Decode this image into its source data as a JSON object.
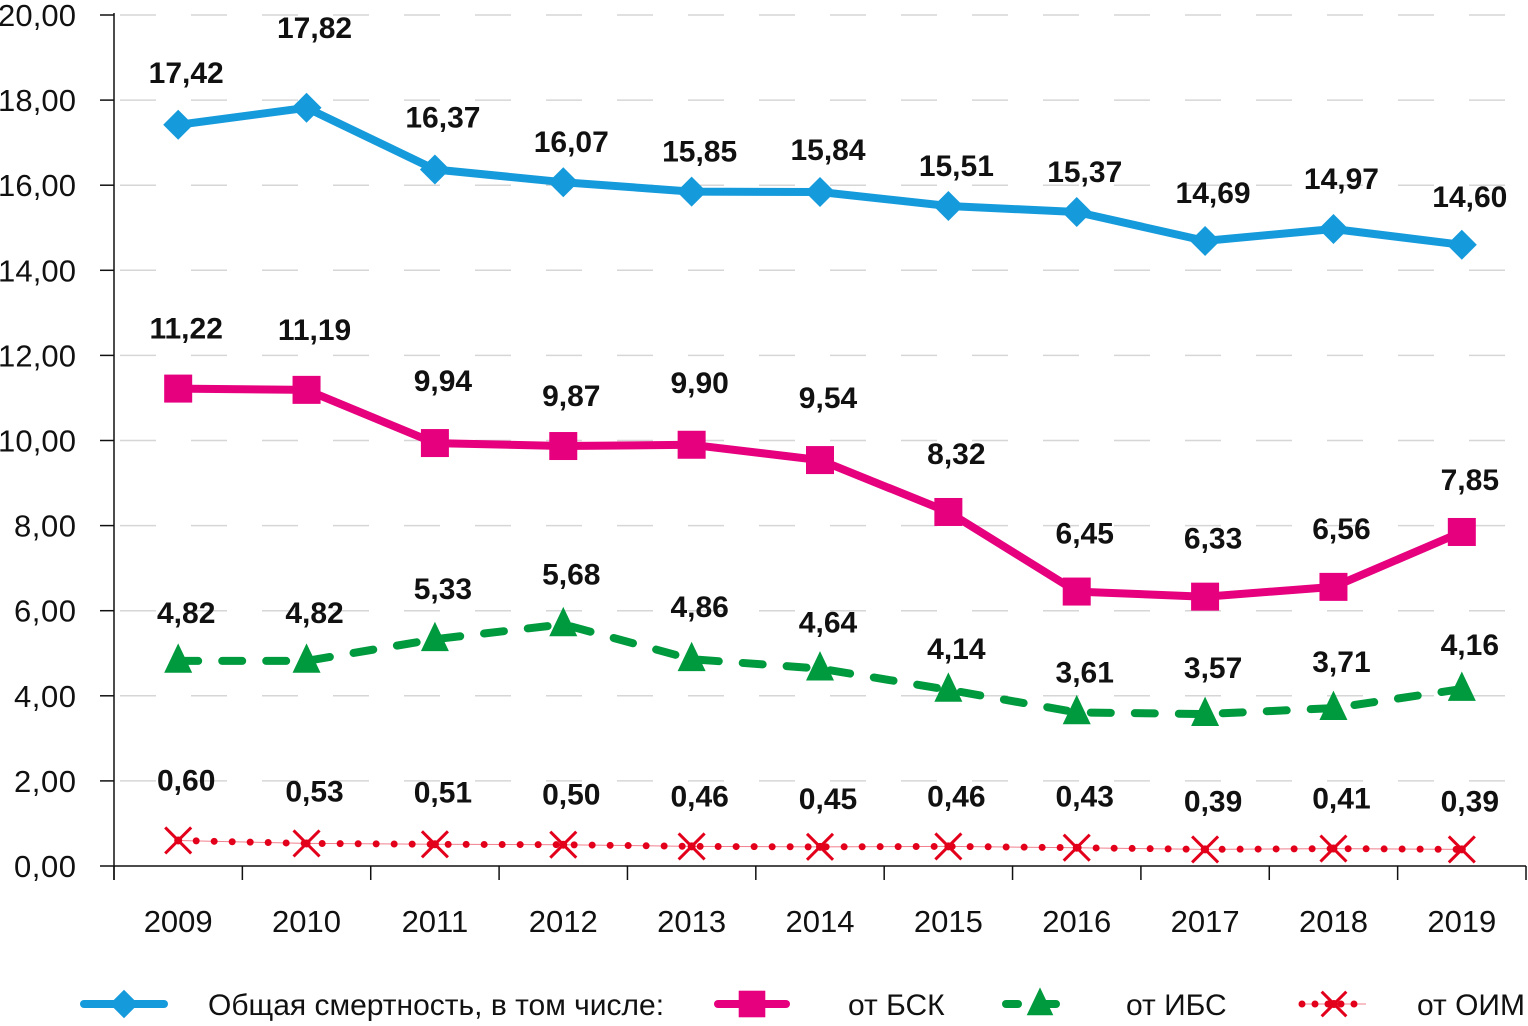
{
  "chart_data": {
    "type": "line",
    "title": "",
    "xlabel": "",
    "ylabel": "",
    "categories": [
      "2009",
      "2010",
      "2011",
      "2012",
      "2013",
      "2014",
      "2015",
      "2016",
      "2017",
      "2018",
      "2019"
    ],
    "ylim": [
      0,
      20
    ],
    "yticks": [
      0,
      2,
      4,
      6,
      8,
      10,
      12,
      14,
      16,
      18,
      20
    ],
    "ytick_labels": [
      "0,00",
      "2,00",
      "4,00",
      "6,00",
      "8,00",
      "10,00",
      "12,00",
      "14,00",
      "16,00",
      "18,00",
      "20,00"
    ],
    "grid": "horizontal dashed",
    "legend_position": "bottom",
    "series": [
      {
        "name": "Общая смертность, в том числе:",
        "color": "#159bdc",
        "marker": "diamond",
        "line_style": "solid",
        "values": [
          17.42,
          17.82,
          16.37,
          16.07,
          15.85,
          15.84,
          15.51,
          15.37,
          14.69,
          14.97,
          14.6
        ],
        "labels": [
          "17,42",
          "17,82",
          "16,37",
          "16,07",
          "15,85",
          "15,84",
          "15,51",
          "15,37",
          "14,69",
          "14,97",
          "14,60"
        ]
      },
      {
        "name": "от БСК",
        "color": "#e6007e",
        "marker": "square",
        "line_style": "solid",
        "values": [
          11.22,
          11.19,
          9.94,
          9.87,
          9.9,
          9.54,
          8.32,
          6.45,
          6.33,
          6.56,
          7.85
        ],
        "labels": [
          "11,22",
          "11,19",
          "9,94",
          "9,87",
          "9,90",
          "9,54",
          "8,32",
          "6,45",
          "6,33",
          "6,56",
          "7,85"
        ]
      },
      {
        "name": "от ИБС",
        "color": "#009a3e",
        "marker": "triangle",
        "line_style": "dashed",
        "values": [
          4.82,
          4.82,
          5.33,
          5.68,
          4.86,
          4.64,
          4.14,
          3.61,
          3.57,
          3.71,
          4.16
        ],
        "labels": [
          "4,82",
          "4,82",
          "5,33",
          "5,68",
          "4,86",
          "4,64",
          "4,14",
          "3,61",
          "3,57",
          "3,71",
          "4,16"
        ]
      },
      {
        "name": "от ОИМ",
        "color": "#e3001b",
        "marker": "x",
        "line_style": "dotted",
        "values": [
          0.6,
          0.53,
          0.51,
          0.5,
          0.46,
          0.45,
          0.46,
          0.43,
          0.39,
          0.41,
          0.39
        ],
        "labels": [
          "0,60",
          "0,53",
          "0,51",
          "0,50",
          "0,46",
          "0,45",
          "0,46",
          "0,43",
          "0,39",
          "0,41",
          "0,39"
        ]
      }
    ]
  }
}
